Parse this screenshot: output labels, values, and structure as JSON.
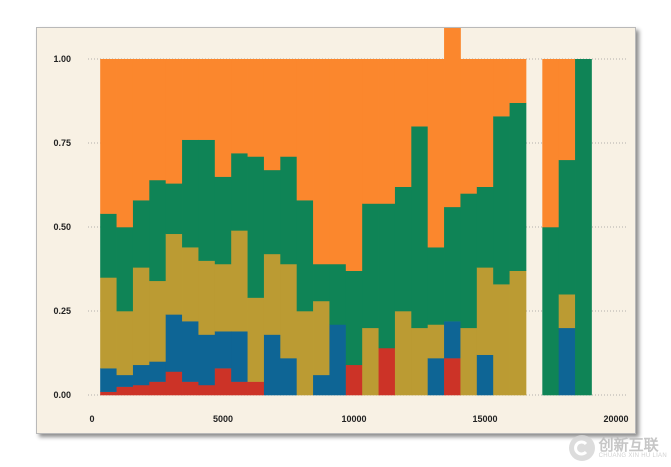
{
  "chart_data": {
    "type": "bar",
    "stacked": true,
    "normalized": true,
    "title": "",
    "xlabel": "",
    "ylabel": "",
    "xlim": [
      0,
      20000
    ],
    "ylim": [
      0,
      1.0
    ],
    "x_ticks": [
      0,
      5000,
      10000,
      15000,
      20000
    ],
    "x_tick_labels": [
      "0",
      "5000",
      "10000",
      "15000",
      "20000"
    ],
    "y_ticks": [
      0,
      0.25,
      0.5,
      0.75,
      1.0
    ],
    "y_tick_labels": [
      "0.00",
      "0.25",
      "0.50",
      "0.75",
      "1.00"
    ],
    "grid": "horizontal dotted",
    "bin_width": 625,
    "bin_starts": [
      312.5,
      937.5,
      1562.5,
      2187.5,
      2812.5,
      3437.5,
      4062.5,
      4687.5,
      5312.5,
      5937.5,
      6562.5,
      7187.5,
      7812.5,
      8437.5,
      9062.5,
      9687.5,
      10312.5,
      10937.5,
      11562.5,
      12187.5,
      12812.5,
      13437.5,
      14062.5,
      14687.5,
      15312.5,
      15937.5,
      16562.5,
      17187.5,
      17812.5,
      18437.5,
      19062.5
    ],
    "series": [
      {
        "name": "red",
        "color": "#cc3327",
        "values": [
          0.01,
          0.025,
          0.03,
          0.04,
          0.07,
          0.04,
          0.03,
          0.08,
          0.04,
          0.04,
          0,
          0,
          0,
          0,
          0,
          0.09,
          0,
          0.14,
          0,
          0,
          0,
          0.11,
          0,
          0,
          0,
          0,
          null,
          0,
          0,
          0,
          0
        ]
      },
      {
        "name": "blue",
        "color": "#0e6595",
        "values": [
          0.07,
          0.035,
          0.06,
          0.06,
          0.17,
          0.18,
          0.15,
          0.11,
          0.15,
          0,
          0.18,
          0.11,
          0,
          0.06,
          0.21,
          0,
          0,
          0,
          0,
          0,
          0.11,
          0.11,
          0,
          0.12,
          0,
          0,
          null,
          0,
          0.2,
          0,
          0
        ]
      },
      {
        "name": "gold",
        "color": "#bb9b33",
        "values": [
          0.27,
          0.19,
          0.29,
          0.24,
          0.24,
          0.22,
          0.22,
          0.2,
          0.3,
          0.25,
          0.24,
          0.28,
          0.25,
          0.22,
          0,
          0,
          0.2,
          0,
          0.25,
          0.2,
          0.1,
          0,
          0.2,
          0.26,
          0.33,
          0.37,
          null,
          0,
          0.1,
          0,
          0
        ]
      },
      {
        "name": "green",
        "color": "#0f8456",
        "values": [
          0.19,
          0.25,
          0.2,
          0.3,
          0.15,
          0.32,
          0.36,
          0.26,
          0.23,
          0.42,
          0.25,
          0.32,
          0.33,
          0.11,
          0.18,
          0.28,
          0.37,
          0.43,
          0.37,
          0.6,
          0.23,
          0.34,
          0.4,
          0.24,
          0.5,
          0.5,
          null,
          0.5,
          0.4,
          1.0,
          0
        ]
      },
      {
        "name": "orange",
        "color": "#fb872d",
        "values": [
          0.46,
          0.5,
          0.42,
          0.36,
          0.37,
          0.24,
          0.24,
          0.35,
          0.28,
          0.29,
          0.33,
          0.29,
          0.42,
          0.61,
          0.61,
          0.63,
          0.43,
          0.43,
          0.38,
          0.2,
          0.56,
          0.55,
          0.4,
          0.38,
          0.17,
          0.13,
          null,
          0.5,
          0.3,
          0,
          0
        ]
      }
    ]
  },
  "watermark": {
    "cn": "创新互联",
    "en": "CHUANG XIN HU LIAN"
  }
}
